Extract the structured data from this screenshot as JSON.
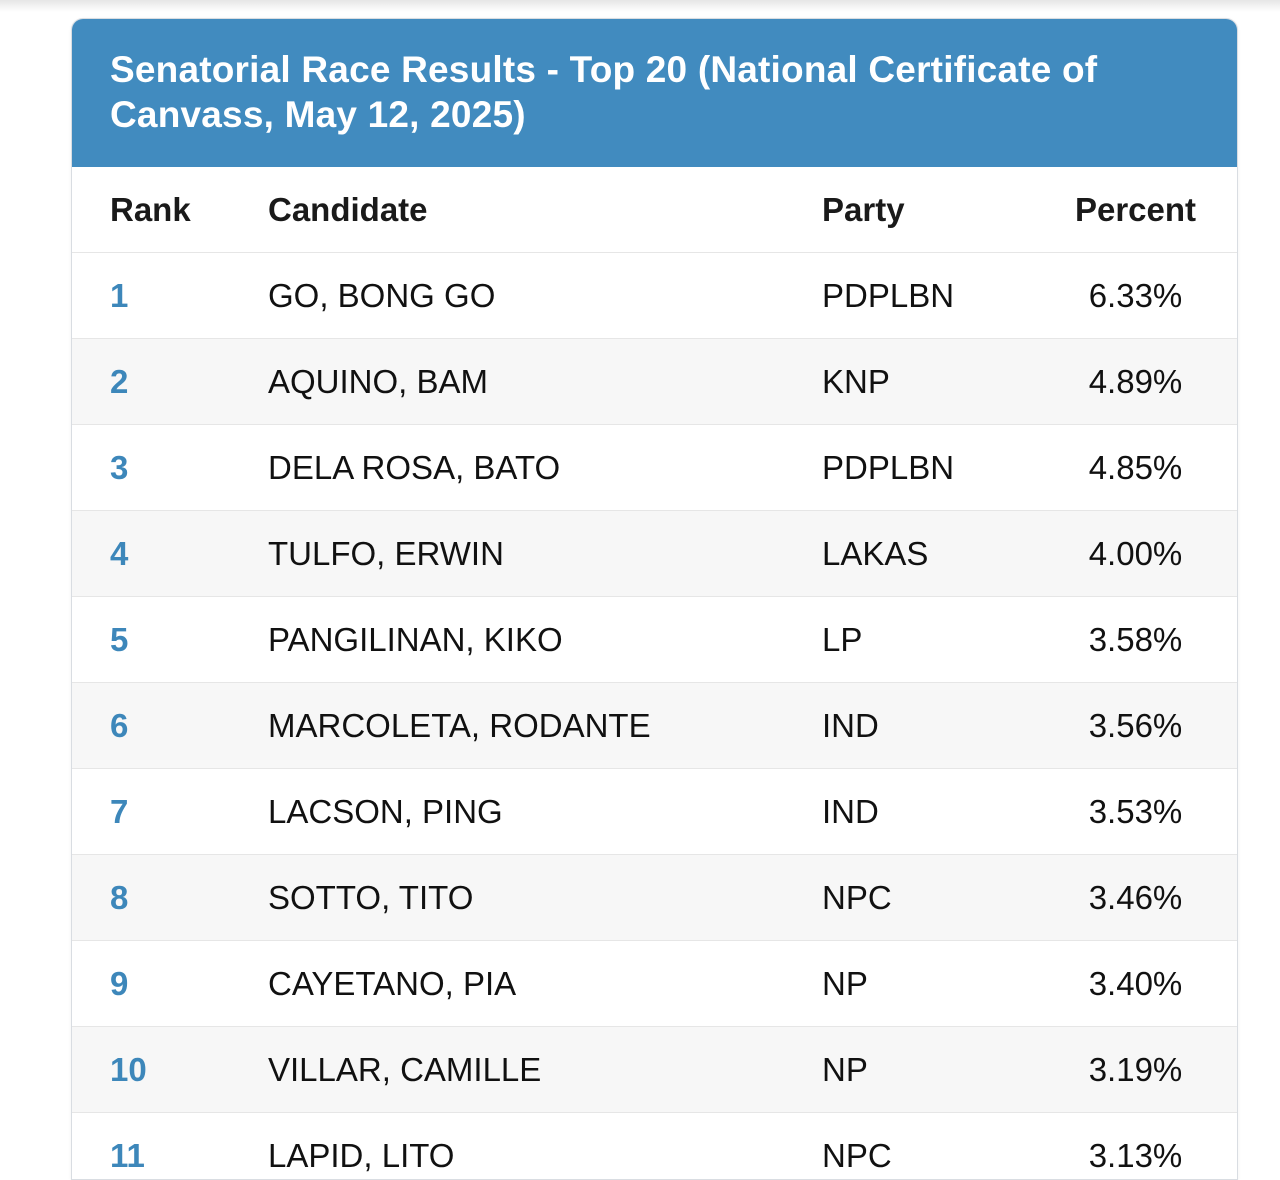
{
  "title": "Senatorial Race Results - Top 20 (National Certificate of Canvass, May 12, 2025)",
  "columns": {
    "rank": "Rank",
    "candidate": "Candidate",
    "party": "Party",
    "percent": "Percent"
  },
  "rows": [
    {
      "rank": "1",
      "candidate": "GO, BONG GO",
      "party": "PDPLBN",
      "percent": "6.33%"
    },
    {
      "rank": "2",
      "candidate": "AQUINO, BAM",
      "party": "KNP",
      "percent": "4.89%"
    },
    {
      "rank": "3",
      "candidate": "DELA ROSA, BATO",
      "party": "PDPLBN",
      "percent": "4.85%"
    },
    {
      "rank": "4",
      "candidate": "TULFO, ERWIN",
      "party": "LAKAS",
      "percent": "4.00%"
    },
    {
      "rank": "5",
      "candidate": "PANGILINAN, KIKO",
      "party": "LP",
      "percent": "3.58%"
    },
    {
      "rank": "6",
      "candidate": "MARCOLETA, RODANTE",
      "party": "IND",
      "percent": "3.56%"
    },
    {
      "rank": "7",
      "candidate": "LACSON, PING",
      "party": "IND",
      "percent": "3.53%"
    },
    {
      "rank": "8",
      "candidate": "SOTTO, TITO",
      "party": "NPC",
      "percent": "3.46%"
    },
    {
      "rank": "9",
      "candidate": "CAYETANO, PIA",
      "party": "NP",
      "percent": "3.40%"
    },
    {
      "rank": "10",
      "candidate": "VILLAR, CAMILLE",
      "party": "NP",
      "percent": "3.19%"
    },
    {
      "rank": "11",
      "candidate": "LAPID, LITO",
      "party": "NPC",
      "percent": "3.13%"
    }
  ],
  "colors": {
    "header_bg": "#418bbf",
    "rank_text": "#3d87ba",
    "stripe": "#f7f7f7"
  }
}
